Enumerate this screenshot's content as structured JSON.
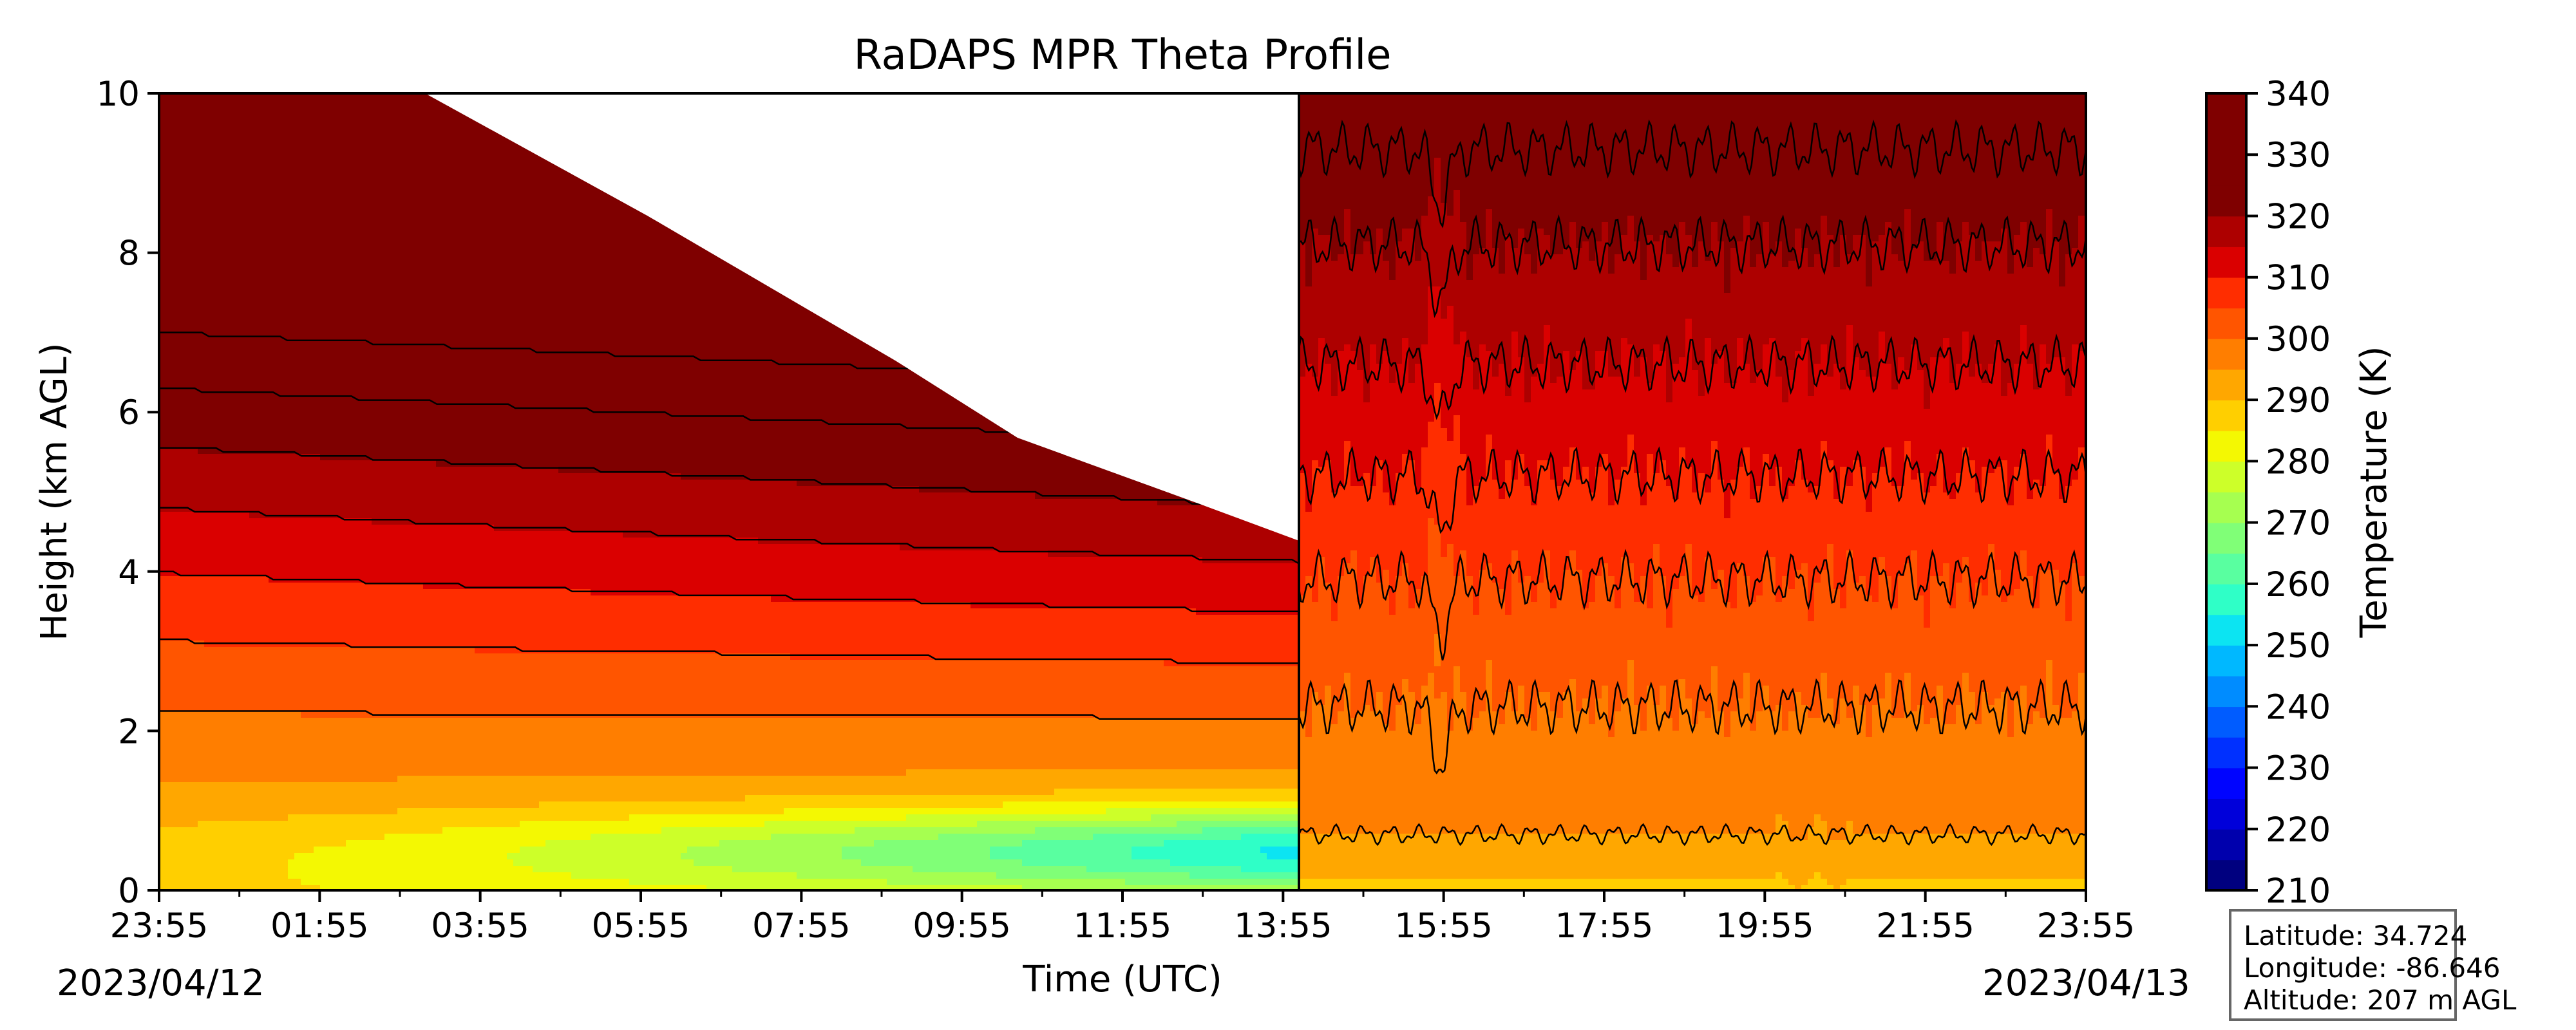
{
  "chart_data": {
    "type": "heatmap",
    "title": "RaDAPS MPR Theta Profile",
    "xlabel": "Time (UTC)",
    "ylabel": "Height (km AGL)",
    "x_tick_labels": [
      "23:55",
      "01:55",
      "03:55",
      "05:55",
      "07:55",
      "09:55",
      "11:55",
      "13:55",
      "15:55",
      "17:55",
      "19:55",
      "21:55",
      "23:55"
    ],
    "start_date": "2023/04/12",
    "end_date": "2023/04/13",
    "ylim": [
      0,
      10
    ],
    "y_ticks": [
      0,
      2,
      4,
      6,
      8,
      10
    ],
    "colorbar": {
      "label": "Temperature (K)",
      "ticks": [
        210,
        220,
        230,
        240,
        250,
        260,
        270,
        280,
        290,
        300,
        310,
        320,
        330,
        340
      ],
      "levels_step": 5,
      "colormap": "jet",
      "colors": [
        "#00007f",
        "#0000ad",
        "#0000da",
        "#0004ff",
        "#0030ff",
        "#005cff",
        "#008cff",
        "#00b8ff",
        "#0ce4f2",
        "#2fffc7",
        "#59ffa0",
        "#80ff77",
        "#a6ff50",
        "#cdff29",
        "#f4f802",
        "#ffcf00",
        "#ffa700",
        "#ff7e00",
        "#ff5500",
        "#ff2d00",
        "#da0000",
        "#ad0000",
        "#7f0000"
      ]
    },
    "grid": false,
    "description_of_fields": "Two regimes separated by a sharp discontinuity near 13:55: earlier period with a near-surface cold pool (down to ~255 K at ~0.5 km) and tilted isentropes; later period with roughly level, noisy isentropes.",
    "isentrope_heights_km_late_period": [
      {
        "theta": 295,
        "height_km": 0.7
      },
      {
        "theta": 300,
        "height_km": 2.3
      },
      {
        "theta": 305,
        "height_km": 3.9
      },
      {
        "theta": 310,
        "height_km": 5.2
      },
      {
        "theta": 315,
        "height_km": 6.6
      },
      {
        "theta": 320,
        "height_km": 8.1
      },
      {
        "theta": 325,
        "height_km": 9.3
      }
    ]
  },
  "info_box": {
    "latitude": "Latitude: 34.724",
    "longitude": "Longitude: -86.646",
    "altitude": "Altitude: 207 m AGL"
  }
}
